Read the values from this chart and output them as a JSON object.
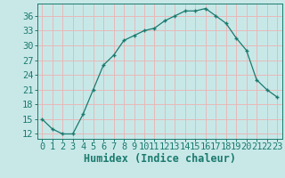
{
  "x": [
    0,
    1,
    2,
    3,
    4,
    5,
    6,
    7,
    8,
    9,
    10,
    11,
    12,
    13,
    14,
    15,
    16,
    17,
    18,
    19,
    20,
    21,
    22,
    23
  ],
  "y": [
    15,
    13,
    12,
    12,
    16,
    21,
    26,
    28,
    31,
    32,
    33,
    33.5,
    35,
    36,
    37,
    37,
    37.5,
    36,
    34.5,
    31.5,
    29,
    23,
    21,
    19.5
  ],
  "line_color": "#1a7a6e",
  "marker_color": "#1a7a6e",
  "background_color": "#c8e8e8",
  "grid_color": "#e8b8b8",
  "xlabel": "Humidex (Indice chaleur)",
  "xlim": [
    -0.5,
    23.5
  ],
  "ylim": [
    11,
    38.5
  ],
  "yticks": [
    12,
    15,
    18,
    21,
    24,
    27,
    30,
    33,
    36
  ],
  "xticks": [
    0,
    1,
    2,
    3,
    4,
    5,
    6,
    7,
    8,
    9,
    10,
    11,
    12,
    13,
    14,
    15,
    16,
    17,
    18,
    19,
    20,
    21,
    22,
    23
  ],
  "tick_fontsize": 7.5,
  "xlabel_fontsize": 8.5
}
